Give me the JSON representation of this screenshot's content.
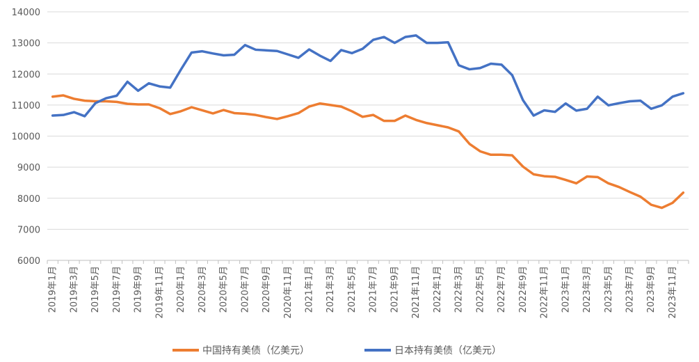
{
  "chart_data": {
    "type": "line",
    "ylim": [
      6000,
      14000
    ],
    "yticks": [
      6000,
      7000,
      8000,
      9000,
      10000,
      11000,
      12000,
      13000,
      14000
    ],
    "grid": true,
    "legend_position": "bottom",
    "x": [
      "2019年1月",
      "2019年2月",
      "2019年3月",
      "2019年4月",
      "2019年5月",
      "2019年6月",
      "2019年7月",
      "2019年8月",
      "2019年9月",
      "2019年10月",
      "2019年11月",
      "2019年12月",
      "2020年1月",
      "2020年2月",
      "2020年3月",
      "2020年4月",
      "2020年5月",
      "2020年6月",
      "2020年7月",
      "2020年8月",
      "2020年9月",
      "2020年10月",
      "2020年11月",
      "2020年12月",
      "2021年1月",
      "2021年2月",
      "2021年3月",
      "2021年4月",
      "2021年5月",
      "2021年6月",
      "2021年7月",
      "2021年8月",
      "2021年9月",
      "2021年10月",
      "2021年11月",
      "2021年12月",
      "2022年1月",
      "2022年2月",
      "2022年3月",
      "2022年4月",
      "2022年5月",
      "2022年6月",
      "2022年7月",
      "2022年8月",
      "2022年9月",
      "2022年10月",
      "2022年11月",
      "2022年12月",
      "2023年1月",
      "2023年2月",
      "2023年3月",
      "2023年4月",
      "2023年5月",
      "2023年6月",
      "2023年7月",
      "2023年8月",
      "2023年9月",
      "2023年10月",
      "2023年11月",
      "2023年12月"
    ],
    "xtick_labels": [
      "2019年1月",
      "2019年3月",
      "2019年5月",
      "2019年7月",
      "2019年9月",
      "2019年11月",
      "2020年1月",
      "2020年3月",
      "2020年5月",
      "2020年7月",
      "2020年9月",
      "2020年11月",
      "2021年1月",
      "2021年3月",
      "2021年5月",
      "2021年7月",
      "2021年9月",
      "2021年11月",
      "2022年1月",
      "2022年3月",
      "2022年5月",
      "2022年7月",
      "2022年9月",
      "2022年11月",
      "2023年1月",
      "2023年3月",
      "2023年5月",
      "2023年7月",
      "2023年9月",
      "2023年11月"
    ],
    "series": [
      {
        "name": "中国持有美债（亿美元）",
        "color": "#ED7D31",
        "values": [
          11270,
          11310,
          11200,
          11140,
          11120,
          11120,
          11100,
          11040,
          11020,
          11020,
          10900,
          10710,
          10800,
          10930,
          10830,
          10730,
          10840,
          10740,
          10720,
          10680,
          10610,
          10550,
          10640,
          10740,
          10950,
          11050,
          11000,
          10950,
          10800,
          10620,
          10680,
          10490,
          10490,
          10660,
          10520,
          10420,
          10350,
          10280,
          10150,
          9750,
          9510,
          9400,
          9400,
          9380,
          9020,
          8770,
          8710,
          8690,
          8590,
          8480,
          8700,
          8680,
          8480,
          8360,
          8200,
          8050,
          7790,
          7690,
          7850,
          8180
        ]
      },
      {
        "name": "日本持有美债（亿美元）",
        "color": "#4472C4",
        "values": [
          10660,
          10680,
          10770,
          10640,
          11060,
          11220,
          11300,
          11750,
          11460,
          11700,
          11600,
          11560,
          12140,
          12690,
          12730,
          12660,
          12600,
          12620,
          12930,
          12780,
          12760,
          12740,
          12630,
          12520,
          12790,
          12590,
          12420,
          12770,
          12670,
          12810,
          13100,
          13190,
          13000,
          13190,
          13240,
          13000,
          13000,
          13020,
          12280,
          12150,
          12190,
          12330,
          12300,
          11960,
          11160,
          10660,
          10830,
          10780,
          11050,
          10820,
          10880,
          11270,
          10990,
          11060,
          11120,
          11140,
          10880,
          10990,
          11270,
          11380
        ]
      }
    ]
  }
}
